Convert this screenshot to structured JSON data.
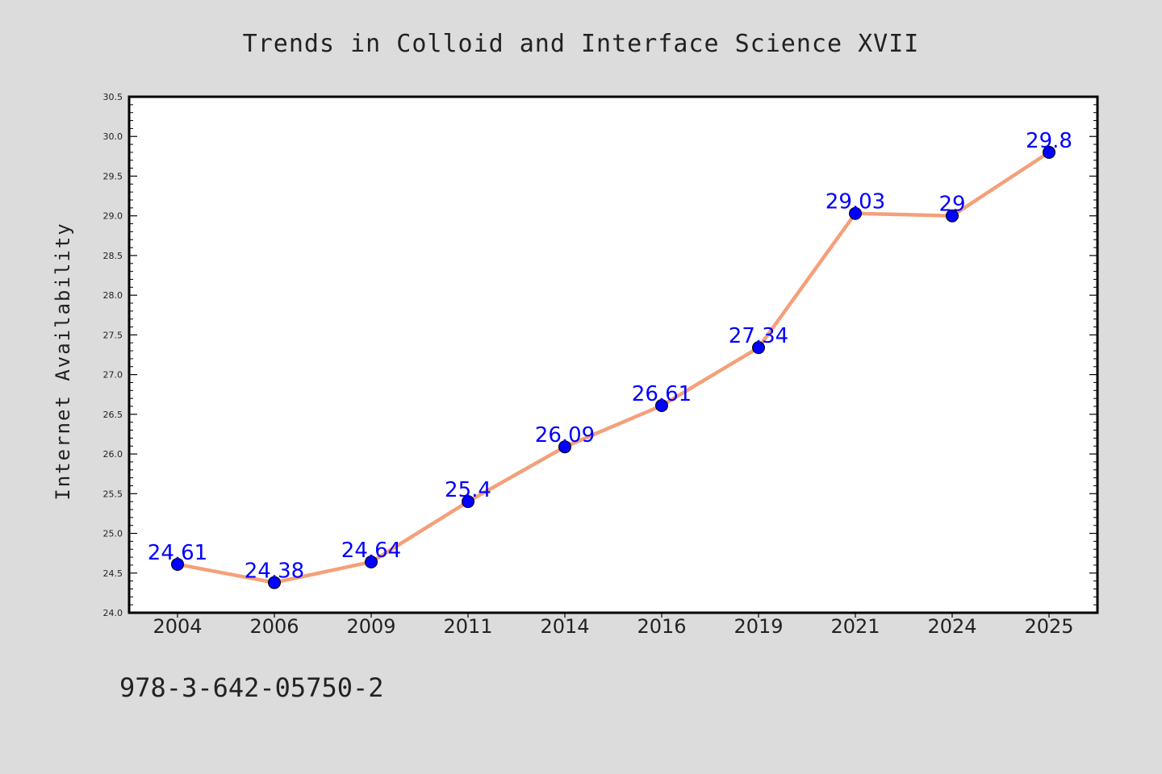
{
  "chart_data": {
    "type": "line",
    "title": "Trends in Colloid and Interface Science XVII",
    "xlabel": "",
    "ylabel": "Internet Availability",
    "categories": [
      "2004",
      "2006",
      "2009",
      "2011",
      "2014",
      "2016",
      "2019",
      "2021",
      "2024",
      "2025"
    ],
    "series": [
      {
        "values": [
          24.61,
          24.38,
          24.64,
          25.4,
          26.09,
          26.61,
          27.34,
          29.03,
          29,
          29.8
        ],
        "labels": [
          "24.61",
          "24.38",
          "24.64",
          "25.4",
          "26.09",
          "26.61",
          "27.34",
          "29.03",
          "29",
          "29.8"
        ],
        "line_color": "#f4a07a",
        "marker_color": "#0000ff"
      }
    ],
    "ylim": [
      24.0,
      30.5
    ],
    "yticks": [
      "24.0",
      "24.5",
      "25.0",
      "25.5",
      "26.0",
      "26.5",
      "27.0",
      "27.5",
      "28.0",
      "28.5",
      "29.0",
      "29.5",
      "30.0",
      "30.5"
    ],
    "grid": false,
    "legend": "none",
    "data_label_color": "#0000ff"
  },
  "footer_text": "978-3-642-05750-2"
}
